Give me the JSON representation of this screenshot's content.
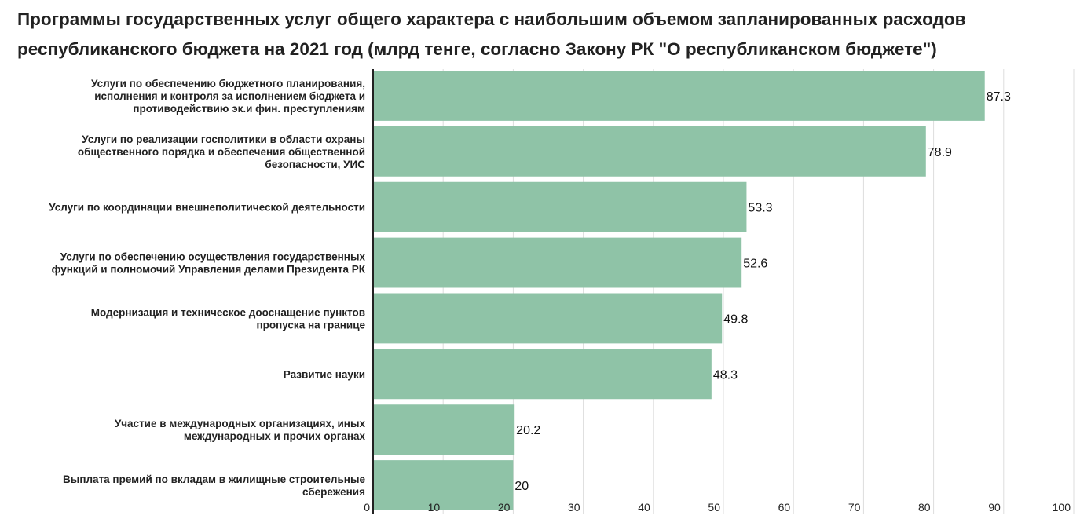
{
  "chart_data": {
    "type": "bar",
    "orientation": "horizontal",
    "title": "Программы государственных услуг общего характера с наибольшим объемом запланированных расходов республиканского бюджета на 2021 год (млрд тенге, согласно Закону РК \"О республиканском бюджете\")",
    "categories": [
      [
        "Услуги по обеспечению бюджетного планирования,",
        "исполнения и контроля за исполнением бюджета и",
        "противодействию эк.и фин. преступлениям"
      ],
      [
        "Услуги по реализации госполитики в области охраны",
        "общественного порядка и обеспечения общественной",
        "безопасности, УИС"
      ],
      [
        "Услуги по координации внешнеполитической деятельности"
      ],
      [
        "Услуги по обеспечению осуществления государственных",
        "функций и полномочий Управления делами Президента РК"
      ],
      [
        "Модернизация и техническое дооснащение пунктов",
        "пропуска на границе"
      ],
      [
        "Развитие науки"
      ],
      [
        "Участие в международных организациях, иных",
        "международных и прочих органах"
      ],
      [
        "Выплата премий по вкладам в жилищные строительные",
        "сбережения"
      ]
    ],
    "values": [
      87.3,
      78.9,
      53.3,
      52.6,
      49.8,
      48.3,
      20.2,
      20
    ],
    "value_labels": [
      "87.3",
      "78.9",
      "53.3",
      "52.6",
      "49.8",
      "48.3",
      "20.2",
      "20"
    ],
    "xlim": [
      0,
      100
    ],
    "xticks": [
      0,
      10,
      20,
      30,
      40,
      50,
      60,
      70,
      80,
      90,
      100
    ],
    "grid": "vertical",
    "bar_color": "#8fc3a7",
    "grid_color": "#dddddd",
    "axis_color": "#222222"
  }
}
